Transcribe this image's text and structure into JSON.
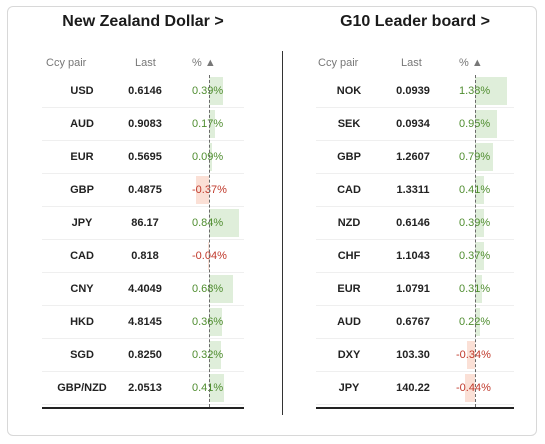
{
  "left": {
    "title": "New Zealand Dollar >",
    "headers": {
      "ccy": "Ccy pair",
      "last": "Last",
      "pct": "% ▲"
    },
    "rows": [
      {
        "ccy": "USD",
        "last": "0.6146",
        "pct": "0.39%",
        "value": 0.39
      },
      {
        "ccy": "AUD",
        "last": "0.9083",
        "pct": "0.17%",
        "value": 0.17
      },
      {
        "ccy": "EUR",
        "last": "0.5695",
        "pct": "0.09%",
        "value": 0.09
      },
      {
        "ccy": "GBP",
        "last": "0.4875",
        "pct": "-0.37%",
        "value": -0.37
      },
      {
        "ccy": "JPY",
        "last": "86.17",
        "pct": "0.84%",
        "value": 0.84
      },
      {
        "ccy": "CAD",
        "last": "0.818",
        "pct": "-0.04%",
        "value": -0.04
      },
      {
        "ccy": "CNY",
        "last": "4.4049",
        "pct": "0.68%",
        "value": 0.68
      },
      {
        "ccy": "HKD",
        "last": "4.8145",
        "pct": "0.36%",
        "value": 0.36
      },
      {
        "ccy": "SGD",
        "last": "0.8250",
        "pct": "0.32%",
        "value": 0.32
      },
      {
        "ccy": "GBP/NZD",
        "last": "2.0513",
        "pct": "0.41%",
        "value": 0.41
      }
    ]
  },
  "right": {
    "title": "G10 Leader board >",
    "headers": {
      "ccy": "Ccy pair",
      "last": "Last",
      "pct": "% ▲"
    },
    "rows": [
      {
        "ccy": "NOK",
        "last": "0.0939",
        "pct": "1.38%",
        "value": 1.38
      },
      {
        "ccy": "SEK",
        "last": "0.0934",
        "pct": "0.95%",
        "value": 0.95
      },
      {
        "ccy": "GBP",
        "last": "1.2607",
        "pct": "0.79%",
        "value": 0.79
      },
      {
        "ccy": "CAD",
        "last": "1.3311",
        "pct": "0.41%",
        "value": 0.41
      },
      {
        "ccy": "NZD",
        "last": "0.6146",
        "pct": "0.39%",
        "value": 0.39
      },
      {
        "ccy": "CHF",
        "last": "1.1043",
        "pct": "0.37%",
        "value": 0.37
      },
      {
        "ccy": "EUR",
        "last": "1.0791",
        "pct": "0.31%",
        "value": 0.31
      },
      {
        "ccy": "AUD",
        "last": "0.6767",
        "pct": "0.22%",
        "value": 0.22
      },
      {
        "ccy": "DXY",
        "last": "103.30",
        "pct": "-0.34%",
        "value": -0.34
      },
      {
        "ccy": "JPY",
        "last": "140.22",
        "pct": "-0.44%",
        "value": -0.44
      }
    ]
  },
  "colors": {
    "positive_text": "#4f8d2f",
    "negative_text": "#c0392b",
    "positive_bar": "#dfeeda",
    "negative_bar": "#fbe0d6"
  }
}
